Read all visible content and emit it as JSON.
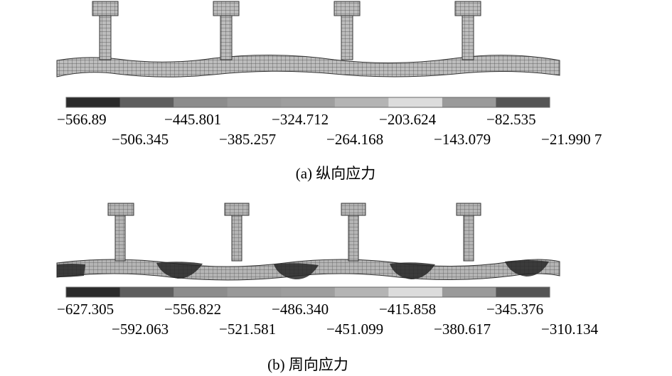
{
  "panels": [
    {
      "legend_labels": [
        "−566.89",
        "−506.345",
        "−445.801",
        "−385.257",
        "−324.712",
        "−264.168",
        "−203.624",
        "−143.079",
        "−82.535",
        "−21.990 7"
      ],
      "caption": "(a) 纵向应力"
    },
    {
      "legend_labels": [
        "−627.305",
        "−592.063",
        "−556.822",
        "−521.581",
        "−486.340",
        "−451.099",
        "−415.858",
        "−380.617",
        "−345.376",
        "−310.134"
      ],
      "caption": "(b) 周向应力"
    }
  ]
}
